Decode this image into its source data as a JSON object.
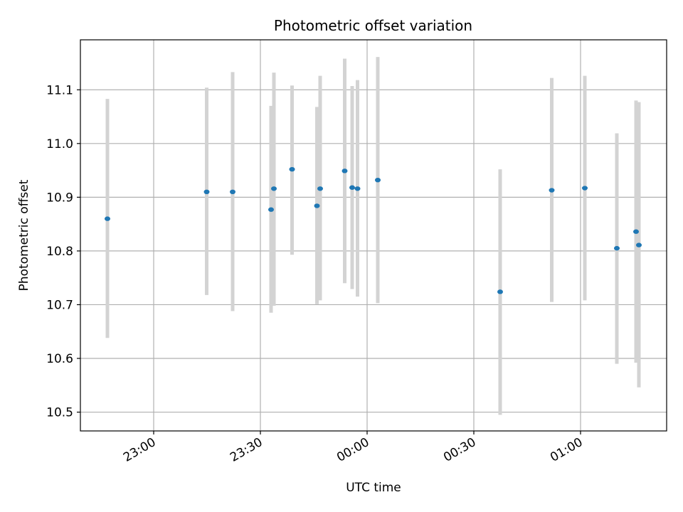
{
  "chart_data": {
    "type": "scatter",
    "title": "Photometric offset variation",
    "xlabel": "UTC time",
    "ylabel": "Photometric offset",
    "x_ticks": [
      "23:00",
      "23:30",
      "00:00",
      "00:30",
      "01:00"
    ],
    "x_tick_minutes": [
      0,
      30,
      60,
      90,
      120
    ],
    "xlim_minutes": [
      -20.6,
      144.2
    ],
    "y_ticks": [
      "10.5",
      "10.6",
      "10.7",
      "10.8",
      "10.9",
      "11.0",
      "11.1"
    ],
    "y_tick_values": [
      10.5,
      10.6,
      10.7,
      10.8,
      10.9,
      11.0,
      11.1
    ],
    "ylim": [
      10.465,
      11.193
    ],
    "grid": true,
    "marker_color": "#1f77b4",
    "errorbar_color": "#d3d3d3",
    "points": [
      {
        "t_min": -13.0,
        "y": 10.86,
        "ylo": 10.638,
        "yhi": 11.083
      },
      {
        "t_min": 14.9,
        "y": 10.91,
        "ylo": 10.718,
        "yhi": 11.104
      },
      {
        "t_min": 22.2,
        "y": 10.91,
        "ylo": 10.688,
        "yhi": 11.133
      },
      {
        "t_min": 33.0,
        "y": 10.877,
        "ylo": 10.685,
        "yhi": 11.07
      },
      {
        "t_min": 33.8,
        "y": 10.916,
        "ylo": 10.698,
        "yhi": 11.132
      },
      {
        "t_min": 38.9,
        "y": 10.952,
        "ylo": 10.793,
        "yhi": 11.108
      },
      {
        "t_min": 45.9,
        "y": 10.884,
        "ylo": 10.701,
        "yhi": 11.068
      },
      {
        "t_min": 46.8,
        "y": 10.916,
        "ylo": 10.708,
        "yhi": 11.126
      },
      {
        "t_min": 53.7,
        "y": 10.949,
        "ylo": 10.74,
        "yhi": 11.158
      },
      {
        "t_min": 55.8,
        "y": 10.918,
        "ylo": 10.729,
        "yhi": 11.107
      },
      {
        "t_min": 57.3,
        "y": 10.916,
        "ylo": 10.715,
        "yhi": 11.118
      },
      {
        "t_min": 63.0,
        "y": 10.932,
        "ylo": 10.703,
        "yhi": 11.161
      },
      {
        "t_min": 97.4,
        "y": 10.724,
        "ylo": 10.495,
        "yhi": 10.952
      },
      {
        "t_min": 111.9,
        "y": 10.913,
        "ylo": 10.705,
        "yhi": 11.122
      },
      {
        "t_min": 121.2,
        "y": 10.917,
        "ylo": 10.708,
        "yhi": 11.126
      },
      {
        "t_min": 130.2,
        "y": 10.805,
        "ylo": 10.59,
        "yhi": 11.019
      },
      {
        "t_min": 135.6,
        "y": 10.836,
        "ylo": 10.592,
        "yhi": 11.08
      },
      {
        "t_min": 136.4,
        "y": 10.811,
        "ylo": 10.546,
        "yhi": 11.077
      }
    ]
  }
}
